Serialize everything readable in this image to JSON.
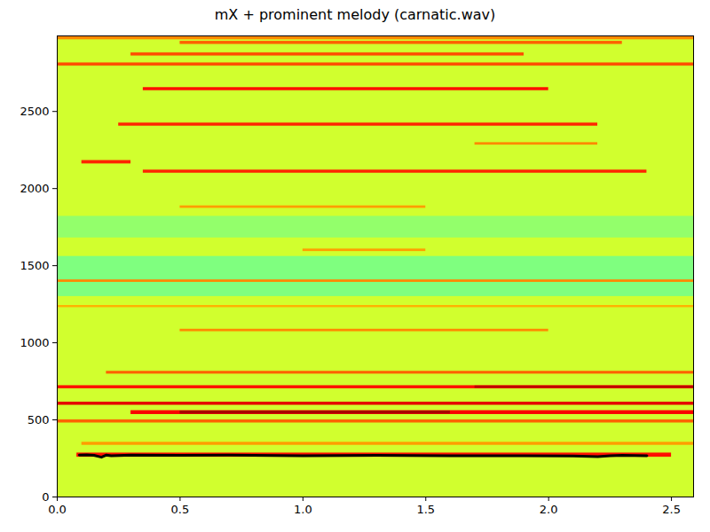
{
  "chart_data": {
    "type": "spectrogram",
    "title": "mX + prominent melody (carnatic.wav)",
    "xlim": [
      0,
      2.59
    ],
    "xticks": [
      {
        "value": 0,
        "label": "0.0"
      },
      {
        "value": 0.5,
        "label": "0.5"
      },
      {
        "value": 1,
        "label": "1.0"
      },
      {
        "value": 1.5,
        "label": "1.5"
      },
      {
        "value": 2,
        "label": "2.0"
      },
      {
        "value": 2.5,
        "label": "2.5"
      }
    ],
    "ylim": [
      0,
      2990
    ],
    "yticks": [
      0,
      500,
      1000,
      1500,
      2000,
      2500
    ],
    "level_range": [
      0,
      1
    ],
    "cells": [
      {
        "t0": 0,
        "t1": 2.59,
        "f0": 0,
        "f1": 2990,
        "level": 0.58
      },
      {
        "t0": 0,
        "t1": 2.59,
        "f0": 1300,
        "f1": 1560,
        "level": 0.5
      },
      {
        "t0": 0,
        "t1": 2.59,
        "f0": 1680,
        "f1": 1820,
        "level": 0.52
      },
      {
        "t0": 0.08,
        "t1": 2.5,
        "f0": 258,
        "f1": 285,
        "level": 0.86
      },
      {
        "t0": 0.1,
        "t1": 2.59,
        "f0": 335,
        "f1": 355,
        "level": 0.72
      },
      {
        "t0": 0,
        "t1": 2.59,
        "f0": 480,
        "f1": 500,
        "level": 0.78
      },
      {
        "t0": 0.3,
        "t1": 2.59,
        "f0": 535,
        "f1": 560,
        "level": 0.88
      },
      {
        "t0": 0.5,
        "t1": 1.6,
        "f0": 538,
        "f1": 558,
        "level": 0.96
      },
      {
        "t0": 0,
        "t1": 2.59,
        "f0": 595,
        "f1": 615,
        "level": 0.9
      },
      {
        "t0": 0,
        "t1": 2.59,
        "f0": 702,
        "f1": 722,
        "level": 0.86
      },
      {
        "t0": 1.7,
        "t1": 2.59,
        "f0": 704,
        "f1": 720,
        "level": 0.94
      },
      {
        "t0": 0.2,
        "t1": 2.59,
        "f0": 797,
        "f1": 815,
        "level": 0.78
      },
      {
        "t0": 0.5,
        "t1": 2.0,
        "f0": 1072,
        "f1": 1088,
        "level": 0.74
      },
      {
        "t0": 0,
        "t1": 2.59,
        "f0": 1228,
        "f1": 1242,
        "level": 0.7
      },
      {
        "t0": 0,
        "t1": 2.59,
        "f0": 1392,
        "f1": 1408,
        "level": 0.74
      },
      {
        "t0": 1.0,
        "t1": 1.5,
        "f0": 1592,
        "f1": 1608,
        "level": 0.72
      },
      {
        "t0": 0.5,
        "t1": 1.5,
        "f0": 1872,
        "f1": 1888,
        "level": 0.72
      },
      {
        "t0": 0.35,
        "t1": 2.4,
        "f0": 2100,
        "f1": 2120,
        "level": 0.84
      },
      {
        "t0": 0.1,
        "t1": 0.3,
        "f0": 2160,
        "f1": 2182,
        "level": 0.84
      },
      {
        "t0": 1.7,
        "t1": 2.2,
        "f0": 2282,
        "f1": 2298,
        "level": 0.74
      },
      {
        "t0": 0.25,
        "t1": 2.2,
        "f0": 2405,
        "f1": 2425,
        "level": 0.84
      },
      {
        "t0": 0.35,
        "t1": 2.0,
        "f0": 2635,
        "f1": 2655,
        "level": 0.86
      },
      {
        "t0": 0,
        "t1": 2.59,
        "f0": 2795,
        "f1": 2815,
        "level": 0.8
      },
      {
        "t0": 0.3,
        "t1": 1.9,
        "f0": 2860,
        "f1": 2880,
        "level": 0.8
      },
      {
        "t0": 0.5,
        "t1": 2.3,
        "f0": 2935,
        "f1": 2955,
        "level": 0.78
      },
      {
        "t0": 0,
        "t1": 2.59,
        "f0": 2965,
        "f1": 2990,
        "level": 0.74
      }
    ],
    "melody": {
      "color": "black",
      "x": [
        0.09,
        0.12,
        0.15,
        0.18,
        0.2,
        0.22,
        0.3,
        0.5,
        0.7,
        1.0,
        1.3,
        1.6,
        1.9,
        2.1,
        2.2,
        2.25,
        2.3,
        2.4
      ],
      "values": [
        272,
        273,
        270,
        258,
        272,
        268,
        272,
        270,
        272,
        268,
        270,
        268,
        268,
        266,
        262,
        268,
        270,
        268
      ]
    }
  }
}
